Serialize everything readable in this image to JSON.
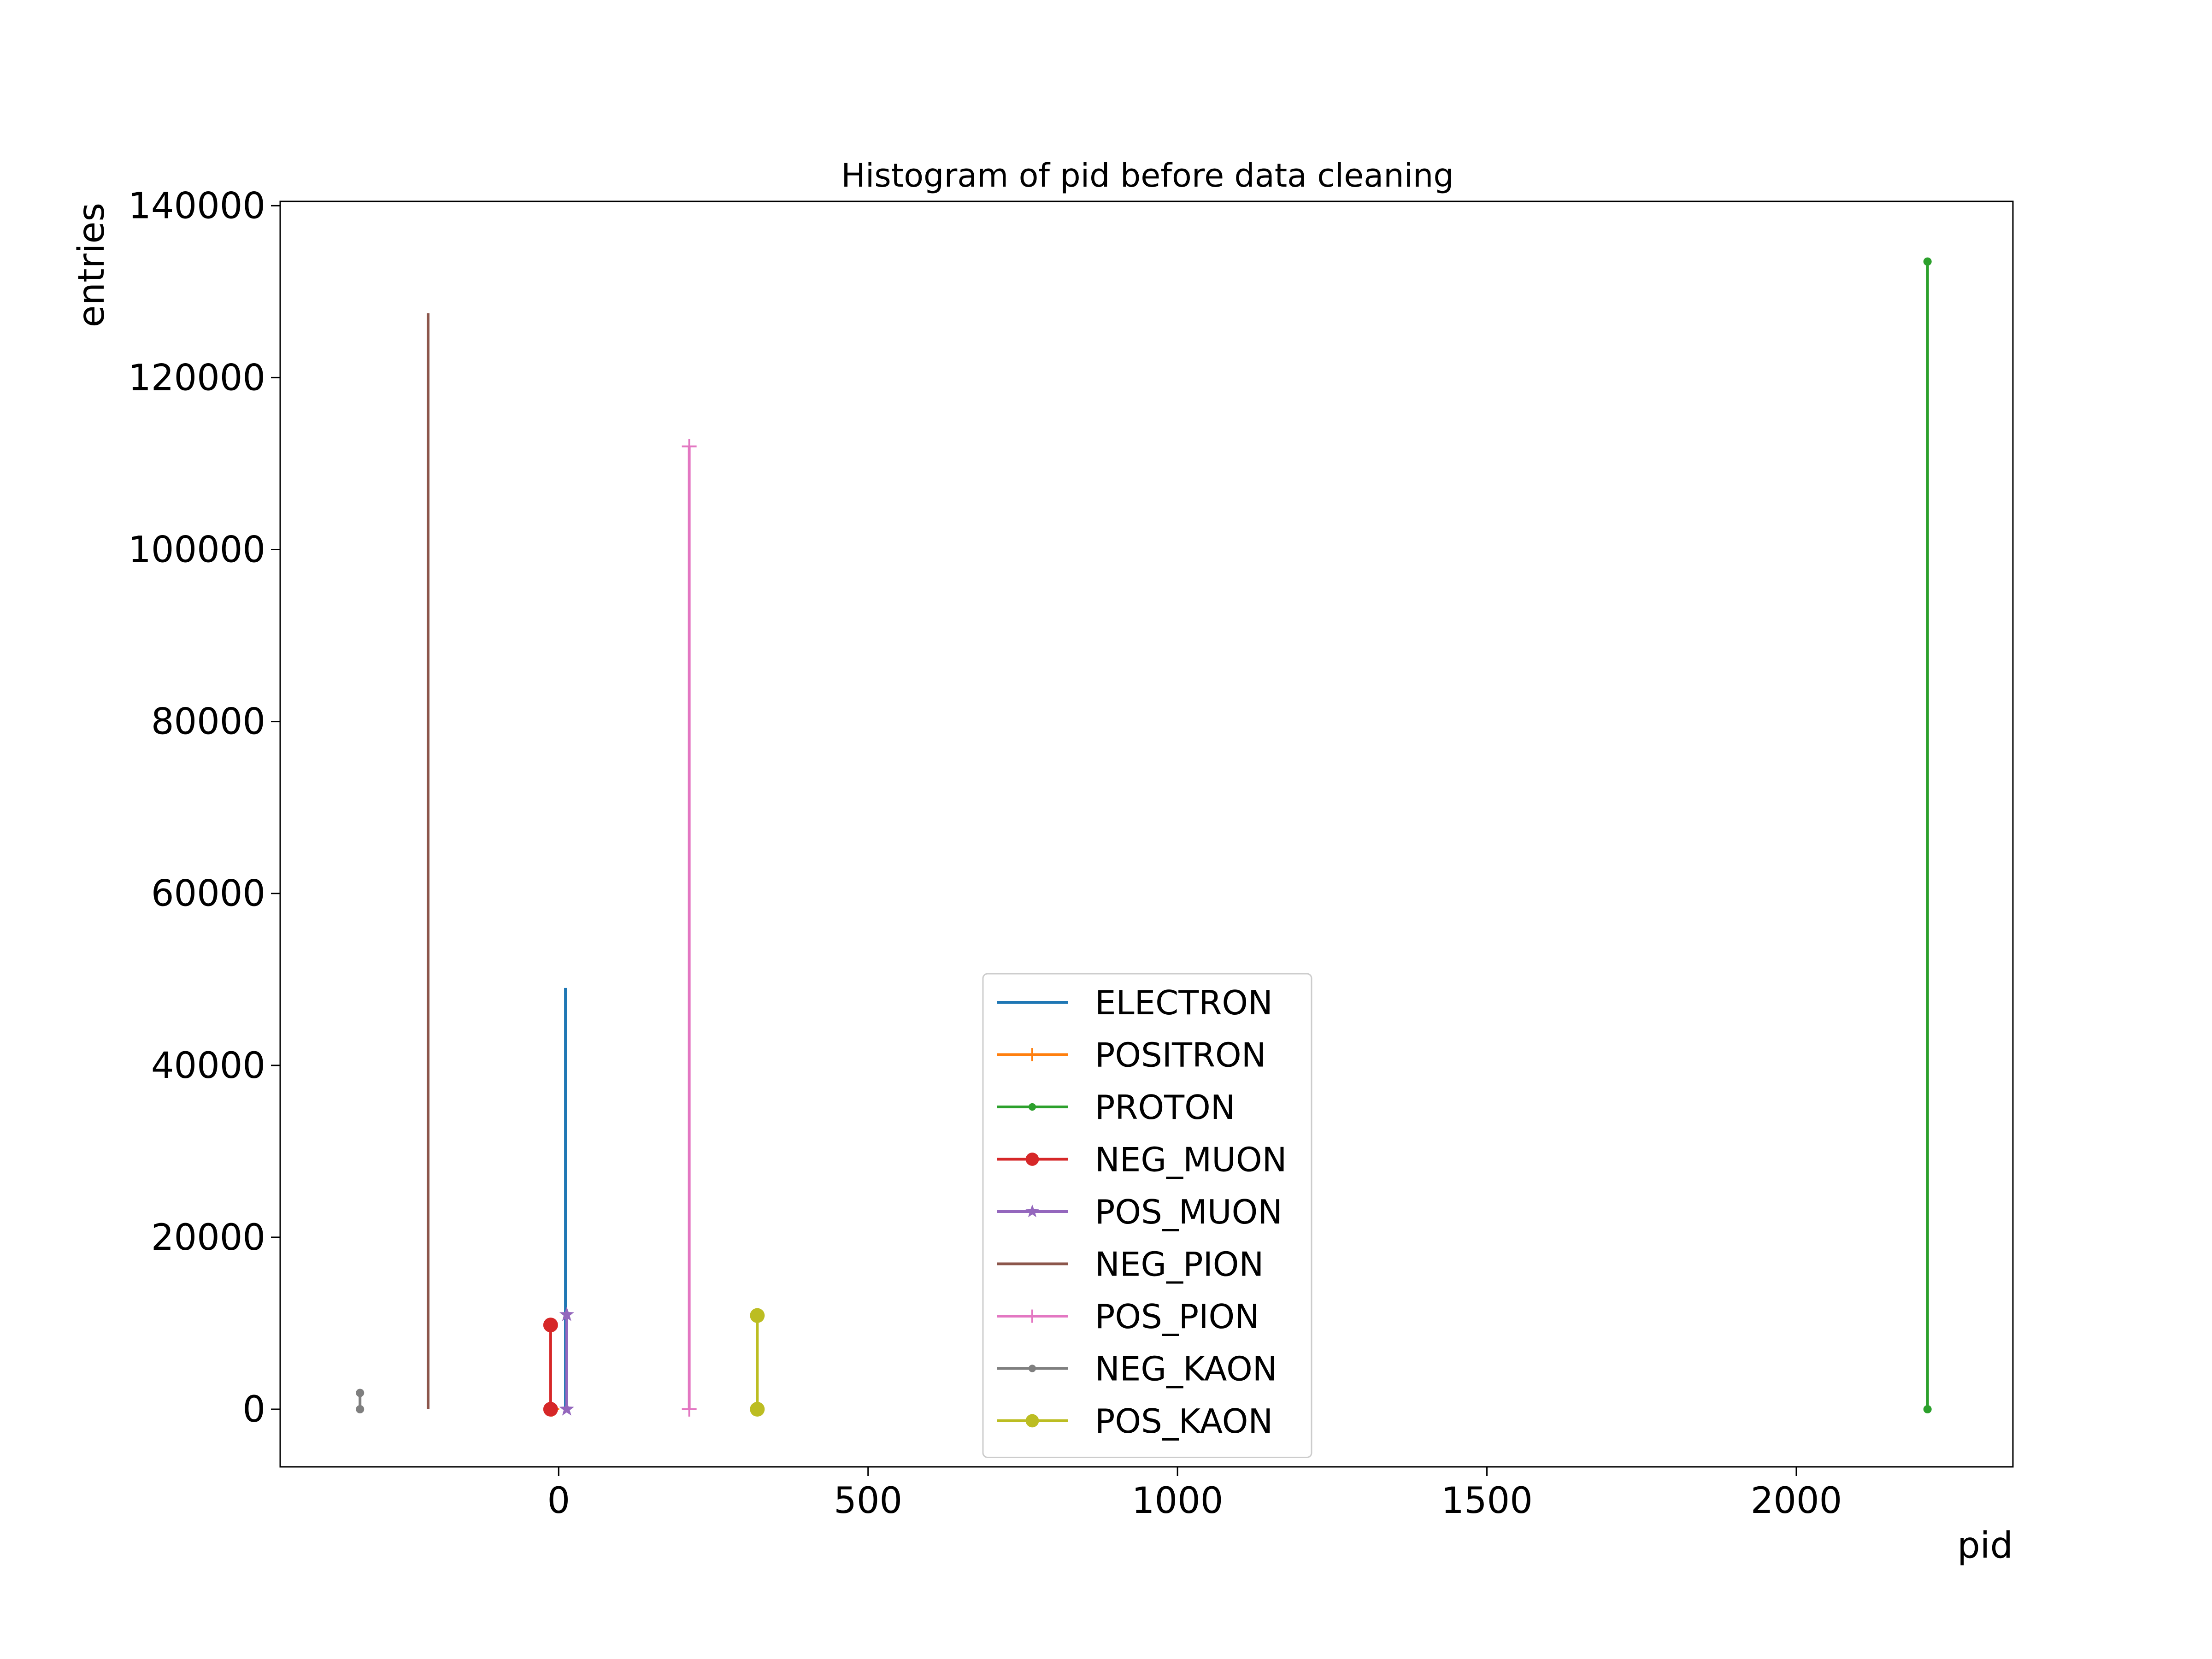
{
  "chart_data": {
    "type": "line",
    "title": "Histogram of pid before data cleaning",
    "xlabel": "pid",
    "ylabel": "entries",
    "xlim": [
      -450,
      2350
    ],
    "ylim": [
      -6700,
      140500
    ],
    "xticks": [
      0,
      500,
      1000,
      1500,
      2000
    ],
    "yticks": [
      0,
      20000,
      40000,
      60000,
      80000,
      100000,
      120000,
      140000
    ],
    "grid": false,
    "legend_position": "lower center",
    "series": [
      {
        "name": "ELECTRON",
        "color": "#1f77b4",
        "marker": "none",
        "x": [
          11,
          11
        ],
        "y": [
          0,
          49000
        ]
      },
      {
        "name": "POSITRON",
        "color": "#ff7f0e",
        "marker": "plus",
        "x": [
          -11,
          -11
        ],
        "y": [
          0,
          0
        ]
      },
      {
        "name": "PROTON",
        "color": "#2ca02c",
        "marker": "point",
        "x": [
          2212,
          2212
        ],
        "y": [
          0,
          133500
        ]
      },
      {
        "name": "NEG_MUON",
        "color": "#d62728",
        "marker": "circle",
        "x": [
          -13,
          -13
        ],
        "y": [
          0,
          9800
        ]
      },
      {
        "name": "POS_MUON",
        "color": "#9467bd",
        "marker": "star",
        "x": [
          13,
          13
        ],
        "y": [
          0,
          11000
        ]
      },
      {
        "name": "NEG_PION",
        "color": "#8c564b",
        "marker": "none",
        "x": [
          -211,
          -211
        ],
        "y": [
          0,
          127500
        ]
      },
      {
        "name": "POS_PION",
        "color": "#e377c2",
        "marker": "plus",
        "x": [
          211,
          211
        ],
        "y": [
          0,
          112000
        ]
      },
      {
        "name": "NEG_KAON",
        "color": "#7f7f7f",
        "marker": "point",
        "x": [
          -321,
          -321
        ],
        "y": [
          0,
          1900
        ]
      },
      {
        "name": "POS_KAON",
        "color": "#bcbd22",
        "marker": "circle",
        "x": [
          321,
          321
        ],
        "y": [
          0,
          10900
        ]
      }
    ]
  }
}
